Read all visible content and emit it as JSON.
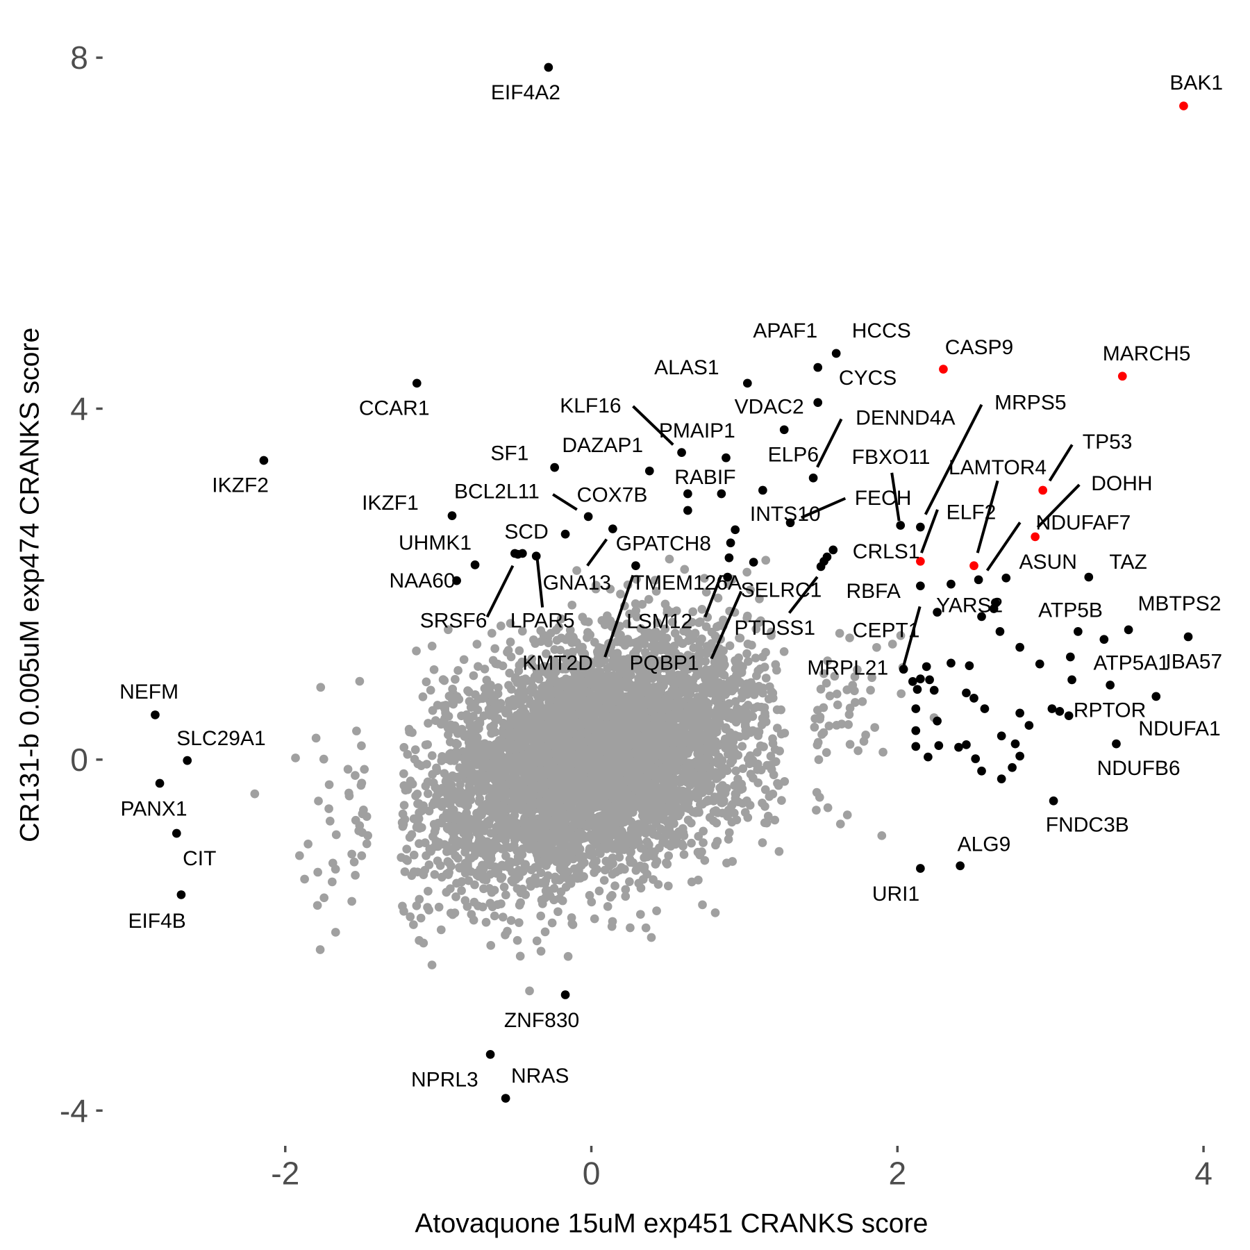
{
  "chart_data": {
    "type": "scatter",
    "title": "",
    "xlabel": "Atovaquone 15uM exp451 CRANKS score",
    "ylabel": "CR131-b 0.005uM exp474 CRANKS score",
    "xlim": [
      -3.13,
      4.15
    ],
    "ylim": [
      -4.4,
      8.2
    ],
    "x_ticks": [
      "-2",
      "0",
      "2",
      "4"
    ],
    "x_tick_values": [
      -2,
      0,
      2,
      4
    ],
    "y_ticks": [
      "-4",
      "0",
      "4",
      "8"
    ],
    "y_tick_values": [
      -4,
      0,
      4,
      8
    ],
    "grid": false,
    "legend": "none",
    "colors": {
      "background_genes": "#a0a0a0",
      "hit_genes": "#000000",
      "highlighted_genes": "#ff0000"
    },
    "highlighted_points": [
      {
        "label": "BAK1",
        "x": 3.87,
        "y": 7.45
      },
      {
        "label": "CASP9",
        "x": 2.3,
        "y": 4.45
      },
      {
        "label": "MARCH5",
        "x": 3.47,
        "y": 4.37
      },
      {
        "label": "TP53",
        "x": 2.95,
        "y": 3.07
      },
      {
        "label": "DOHH",
        "x": 2.9,
        "y": 2.54
      },
      {
        "label": "ELF2",
        "x": 2.15,
        "y": 2.26
      },
      {
        "label": "LAMTOR4",
        "x": 2.5,
        "y": 2.21
      }
    ],
    "labeled_points": [
      {
        "label": "EIF4A2",
        "x": -0.28,
        "y": 7.89
      },
      {
        "label": "CCAR1",
        "x": -1.14,
        "y": 4.29
      },
      {
        "label": "IKZF2",
        "x": -2.14,
        "y": 3.41
      },
      {
        "label": "HCCS",
        "x": 1.6,
        "y": 4.63
      },
      {
        "label": "APAF1",
        "x": 1.48,
        "y": 4.47
      },
      {
        "label": "CYCS",
        "x": 1.48,
        "y": 4.07
      },
      {
        "label": "ALAS1",
        "x": 1.02,
        "y": 4.29
      },
      {
        "label": "VDAC2",
        "x": 1.26,
        "y": 3.76
      },
      {
        "label": "KLF16",
        "x": 0.59,
        "y": 3.5
      },
      {
        "label": "PMAIP1",
        "x": 0.88,
        "y": 3.44
      },
      {
        "label": "DAZAP1",
        "x": 0.38,
        "y": 3.29
      },
      {
        "label": "SF1",
        "x": -0.24,
        "y": 3.33
      },
      {
        "label": "RABIF",
        "x": 0.63,
        "y": 3.03
      },
      {
        "label": "DENND4A",
        "x": 1.45,
        "y": 3.21
      },
      {
        "label": "ELP6",
        "x": 1.12,
        "y": 3.07
      },
      {
        "label": "FECH",
        "x": 1.3,
        "y": 2.7
      },
      {
        "label": "INTS10",
        "x": 0.94,
        "y": 2.62
      },
      {
        "label": "FBXO11",
        "x": 2.02,
        "y": 2.67
      },
      {
        "label": "MRPS5",
        "x": 2.15,
        "y": 2.65
      },
      {
        "label": "CRLS1",
        "x": 1.58,
        "y": 2.39
      },
      {
        "label": "NDUFAF7",
        "x": 2.53,
        "y": 2.05
      },
      {
        "label": "ASUN",
        "x": 2.71,
        "y": 2.07
      },
      {
        "label": "TAZ",
        "x": 3.25,
        "y": 2.08
      },
      {
        "label": "RBFA",
        "x": 2.15,
        "y": 1.98
      },
      {
        "label": "YARS2",
        "x": 2.26,
        "y": 1.68
      },
      {
        "label": "CEPT1",
        "x": 2.1,
        "y": 0.89
      },
      {
        "label": "MRPL21",
        "x": 2.04,
        "y": 1.03
      },
      {
        "label": "ATP5B",
        "x": 3.18,
        "y": 1.46
      },
      {
        "label": "MBTPS2",
        "x": 3.51,
        "y": 1.48
      },
      {
        "label": "IBA57",
        "x": 3.9,
        "y": 1.4
      },
      {
        "label": "ATP5A1",
        "x": 3.39,
        "y": 0.85
      },
      {
        "label": "RPTOR",
        "x": 3.12,
        "y": 0.5
      },
      {
        "label": "NDUFA1",
        "x": 3.69,
        "y": 0.72
      },
      {
        "label": "NDUFB6",
        "x": 3.43,
        "y": 0.18
      },
      {
        "label": "FNDC3B",
        "x": 3.02,
        "y": -0.47
      },
      {
        "label": "ALG9",
        "x": 2.41,
        "y": -1.21
      },
      {
        "label": "URI1",
        "x": 2.15,
        "y": -1.24
      },
      {
        "label": "ZNF830",
        "x": -0.17,
        "y": -2.68
      },
      {
        "label": "NPRL3",
        "x": -0.66,
        "y": -3.36
      },
      {
        "label": "NRAS",
        "x": -0.56,
        "y": -3.86
      },
      {
        "label": "NEFM",
        "x": -2.85,
        "y": 0.51
      },
      {
        "label": "SLC29A1",
        "x": -2.64,
        "y": -0.01
      },
      {
        "label": "PANX1",
        "x": -2.82,
        "y": -0.27
      },
      {
        "label": "CIT",
        "x": -2.71,
        "y": -0.84
      },
      {
        "label": "EIF4B",
        "x": -2.68,
        "y": -1.54
      },
      {
        "label": "IKZF1",
        "x": -0.91,
        "y": 2.78
      },
      {
        "label": "UHMK1",
        "x": -0.76,
        "y": 2.22
      },
      {
        "label": "NAA60",
        "x": -0.88,
        "y": 2.04
      },
      {
        "label": "SCD",
        "x": -0.17,
        "y": 2.57
      },
      {
        "label": "SRSF6",
        "x": -0.5,
        "y": 2.35
      },
      {
        "label": "LPAR5",
        "x": -0.36,
        "y": 2.32
      },
      {
        "label": "BCL2L11",
        "x": -0.02,
        "y": 2.77
      },
      {
        "label": "COX7B",
        "x": -0.45,
        "y": 2.35
      },
      {
        "label": "GNA13",
        "x": 0.14,
        "y": 2.63
      },
      {
        "label": "KMT2D",
        "x": 0.29,
        "y": 2.21
      },
      {
        "label": "GPATCH8",
        "x": 0.9,
        "y": 2.3
      },
      {
        "label": "TMEM126A",
        "x": 0.91,
        "y": 2.47
      },
      {
        "label": "LSM12",
        "x": 0.89,
        "y": 2.08
      },
      {
        "label": "PQBP1",
        "x": 1.06,
        "y": 2.25
      },
      {
        "label": "SELRC1",
        "x": 1.52,
        "y": 2.26
      },
      {
        "label": "PTDSS1",
        "x": 1.5,
        "y": 2.2
      }
    ],
    "unlabeled_hit_points": [
      [
        2.35,
        2.0
      ],
      [
        2.64,
        1.79
      ],
      [
        2.67,
        1.46
      ],
      [
        2.8,
        1.28
      ],
      [
        2.93,
        1.09
      ],
      [
        2.47,
        1.07
      ],
      [
        2.35,
        1.1
      ],
      [
        2.19,
        1.06
      ],
      [
        2.21,
        0.91
      ],
      [
        2.15,
        0.92
      ],
      [
        2.13,
        0.8
      ],
      [
        2.24,
        0.79
      ],
      [
        2.45,
        0.76
      ],
      [
        2.5,
        0.7
      ],
      [
        2.57,
        0.58
      ],
      [
        2.8,
        0.53
      ],
      [
        2.86,
        0.39
      ],
      [
        3.01,
        0.58
      ],
      [
        3.06,
        0.55
      ],
      [
        2.12,
        0.58
      ],
      [
        2.12,
        0.33
      ],
      [
        2.26,
        0.44
      ],
      [
        2.68,
        0.27
      ],
      [
        2.77,
        0.18
      ],
      [
        2.8,
        0.04
      ],
      [
        2.75,
        -0.09
      ],
      [
        2.68,
        -0.22
      ],
      [
        2.51,
        0.01
      ],
      [
        2.55,
        -0.13
      ],
      [
        2.4,
        0.14
      ],
      [
        2.45,
        0.17
      ],
      [
        2.27,
        0.16
      ],
      [
        2.2,
        0.03
      ],
      [
        2.12,
        0.15
      ],
      [
        3.13,
        1.17
      ],
      [
        3.35,
        1.37
      ],
      [
        3.14,
        0.91
      ],
      [
        2.63,
        1.72
      ],
      [
        2.55,
        1.63
      ],
      [
        0.63,
        2.84
      ],
      [
        0.85,
        3.03
      ],
      [
        -0.48,
        2.34
      ],
      [
        1.54,
        2.31
      ]
    ]
  }
}
